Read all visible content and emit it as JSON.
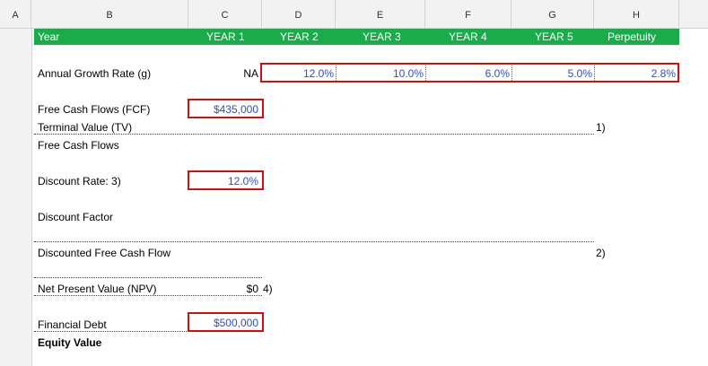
{
  "columns": [
    "A",
    "B",
    "C",
    "D",
    "E",
    "F",
    "G",
    "H"
  ],
  "band": {
    "labels": [
      "Year",
      "YEAR 1",
      "YEAR 2",
      "YEAR 3",
      "YEAR 4",
      "YEAR 5",
      "Perpetuity"
    ],
    "color": "#1aab4a"
  },
  "rows": {
    "growth_label": "Annual Growth Rate (g)",
    "growth_year1": "NA",
    "growth_values": [
      "12.0%",
      "10.0%",
      "6.0%",
      "5.0%",
      "2.8%"
    ],
    "fcf_label": "Free Cash Flows (FCF)",
    "fcf_value": "$435,000",
    "tv_label": "Terminal Value (TV)",
    "tv_note": "1)",
    "fcf2_label": "Free Cash Flows",
    "discount_rate_label": "Discount Rate: 3)",
    "discount_rate_value": "12.0%",
    "discount_factor_label": "Discount Factor",
    "dfcf_label": "Discounted Free Cash Flow",
    "dfcf_note": "2)",
    "npv_label": "Net Present Value (NPV)",
    "npv_value": "$0",
    "npv_note": "4)",
    "debt_label": "Financial Debt",
    "debt_value": "$500,000",
    "equity_label": "Equity Value"
  },
  "highlight_color": "#d01010"
}
